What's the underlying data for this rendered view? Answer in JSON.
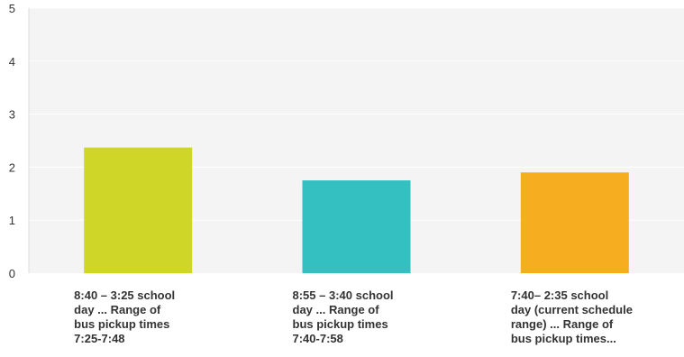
{
  "chart_data": {
    "type": "bar",
    "categories": [
      "8:40 – 3:25 school\nday ... Range of\nbus pickup times\n7:25-7:48",
      "8:55 – 3:40 school\nday ... Range of\nbus pickup times\n7:40-7:58",
      "7:40– 2:35 school\nday (current schedule\nrange) ... Range of\nbus pickup times..."
    ],
    "values": [
      2.37,
      1.75,
      1.9
    ],
    "colors": [
      "#cfd628",
      "#34bfc0",
      "#f6ad1f"
    ],
    "ylim": [
      0,
      5
    ],
    "yticks": [
      "0",
      "1",
      "2",
      "3",
      "4",
      "5"
    ],
    "grid": true,
    "plot_background": "#f4f4f4",
    "title": "",
    "xlabel": "",
    "ylabel": ""
  }
}
